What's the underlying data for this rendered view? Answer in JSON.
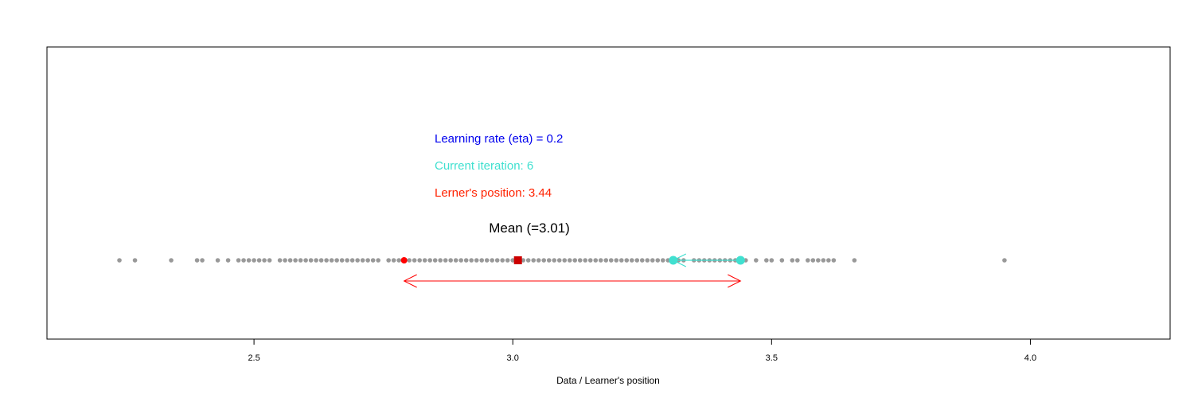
{
  "chart_data": {
    "type": "scatter",
    "xlabel": "Data / Learner's position",
    "xlim": [
      2.1,
      4.27
    ],
    "ticks": [
      2.5,
      3.0,
      3.5,
      4.0
    ],
    "tick_labels": [
      "2.5",
      "3.0",
      "3.5",
      "4.0"
    ],
    "grid": false,
    "annotations": {
      "learning_rate": "Learning rate (eta) = 0.2",
      "iteration": "Current iteration: 6",
      "position": "Lerner's position: 3.44",
      "mean": "Mean (=3.01)"
    },
    "mean": 3.01,
    "learner_position": 3.44,
    "previous_position": 3.31,
    "mirror_position": 2.79,
    "colors": {
      "data": "#999999",
      "mean": "#cc0000",
      "learner": "#40e0d0",
      "position_text": "#ff2200",
      "learning_rate_text": "#0000ee",
      "arrow": "#ff0000"
    },
    "data_points": [
      2.24,
      2.27,
      2.34,
      2.39,
      2.4,
      2.43,
      2.45,
      2.47,
      2.48,
      2.49,
      2.5,
      2.51,
      2.52,
      2.53,
      2.55,
      2.56,
      2.57,
      2.58,
      2.59,
      2.6,
      2.61,
      2.62,
      2.63,
      2.64,
      2.65,
      2.66,
      2.67,
      2.68,
      2.69,
      2.7,
      2.71,
      2.72,
      2.73,
      2.74,
      2.76,
      2.77,
      2.78,
      2.8,
      2.81,
      2.82,
      2.83,
      2.84,
      2.85,
      2.86,
      2.87,
      2.88,
      2.89,
      2.9,
      2.91,
      2.92,
      2.93,
      2.94,
      2.95,
      2.96,
      2.97,
      2.98,
      2.99,
      3.0,
      3.02,
      3.03,
      3.04,
      3.05,
      3.06,
      3.07,
      3.08,
      3.09,
      3.1,
      3.11,
      3.12,
      3.13,
      3.14,
      3.15,
      3.16,
      3.17,
      3.18,
      3.19,
      3.2,
      3.21,
      3.22,
      3.23,
      3.24,
      3.25,
      3.26,
      3.27,
      3.28,
      3.29,
      3.3,
      3.32,
      3.33,
      3.35,
      3.36,
      3.37,
      3.38,
      3.39,
      3.4,
      3.41,
      3.42,
      3.43,
      3.45,
      3.47,
      3.49,
      3.5,
      3.52,
      3.54,
      3.55,
      3.57,
      3.58,
      3.59,
      3.6,
      3.61,
      3.62,
      3.66,
      3.95
    ]
  }
}
